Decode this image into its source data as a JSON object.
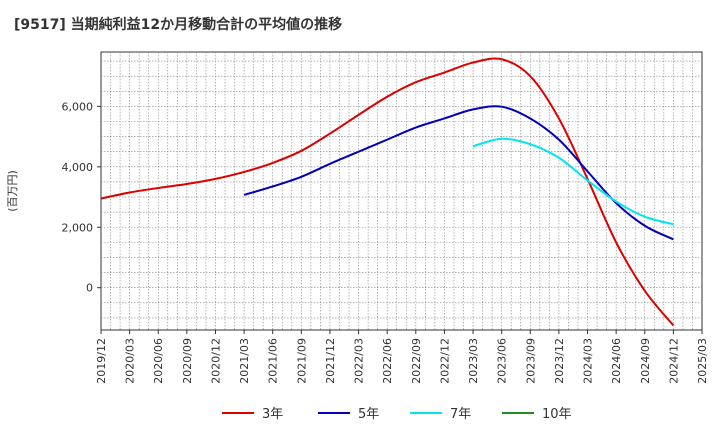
{
  "chart_title": "[9517]  当期純利益12か月移動合計の平均値の推移",
  "chart_data": {
    "type": "line",
    "title": "[9517]  当期純利益12か月移動合計の平均値の推移",
    "ylabel": "(百万円)",
    "xlabel": "",
    "ylim": [
      -1400,
      7800
    ],
    "yticks": [
      0,
      2000,
      4000,
      6000
    ],
    "ytick_labels": [
      "0",
      "2,000",
      "4,000",
      "6,000"
    ],
    "x_ticks": [
      "2019/12",
      "2020/03",
      "2020/06",
      "2020/09",
      "2020/12",
      "2021/03",
      "2021/06",
      "2021/09",
      "2021/12",
      "2022/03",
      "2022/06",
      "2022/09",
      "2022/12",
      "2023/03",
      "2023/06",
      "2023/09",
      "2023/12",
      "2024/03",
      "2024/06",
      "2024/09",
      "2024/12",
      "2025/03"
    ],
    "grid": true,
    "legend_position": "bottom",
    "series": [
      {
        "name": "3年",
        "color": "#dd0000",
        "points": [
          [
            "2019/12",
            2950
          ],
          [
            "2020/03",
            3150
          ],
          [
            "2020/06",
            3300
          ],
          [
            "2020/09",
            3430
          ],
          [
            "2020/12",
            3600
          ],
          [
            "2021/03",
            3830
          ],
          [
            "2021/06",
            4130
          ],
          [
            "2021/09",
            4530
          ],
          [
            "2021/12",
            5100
          ],
          [
            "2022/03",
            5720
          ],
          [
            "2022/06",
            6320
          ],
          [
            "2022/09",
            6800
          ],
          [
            "2022/12",
            7120
          ],
          [
            "2023/03",
            7450
          ],
          [
            "2023/06",
            7560
          ],
          [
            "2023/09",
            7000
          ],
          [
            "2023/12",
            5600
          ],
          [
            "2024/03",
            3600
          ],
          [
            "2024/06",
            1500
          ],
          [
            "2024/09",
            -100
          ],
          [
            "2024/12",
            -1250
          ]
        ]
      },
      {
        "name": "5年",
        "color": "#0000bb",
        "points": [
          [
            "2021/03",
            3070
          ],
          [
            "2021/06",
            3350
          ],
          [
            "2021/09",
            3670
          ],
          [
            "2021/12",
            4100
          ],
          [
            "2022/03",
            4500
          ],
          [
            "2022/06",
            4900
          ],
          [
            "2022/09",
            5300
          ],
          [
            "2022/12",
            5600
          ],
          [
            "2023/03",
            5900
          ],
          [
            "2023/06",
            5990
          ],
          [
            "2023/09",
            5600
          ],
          [
            "2023/12",
            4900
          ],
          [
            "2024/03",
            3850
          ],
          [
            "2024/06",
            2800
          ],
          [
            "2024/09",
            2050
          ],
          [
            "2024/12",
            1600
          ]
        ]
      },
      {
        "name": "7年",
        "color": "#00e5ee",
        "points": [
          [
            "2023/03",
            4680
          ],
          [
            "2023/06",
            4930
          ],
          [
            "2023/09",
            4750
          ],
          [
            "2023/12",
            4300
          ],
          [
            "2024/03",
            3550
          ],
          [
            "2024/06",
            2850
          ],
          [
            "2024/09",
            2350
          ],
          [
            "2024/12",
            2100
          ]
        ]
      },
      {
        "name": "10年",
        "color": "#228b22",
        "points": []
      }
    ]
  }
}
